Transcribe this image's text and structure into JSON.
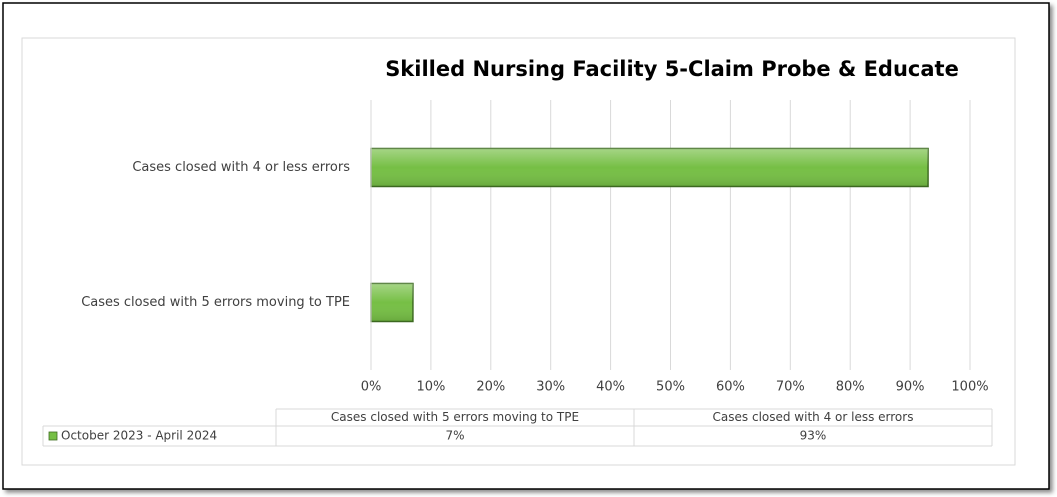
{
  "chart_data": {
    "type": "bar",
    "orientation": "horizontal",
    "title": "Skilled Nursing Facility 5-Claim Probe & Educate",
    "categories": [
      "Cases closed with 5 errors moving to TPE",
      "Cases closed with 4 or less errors"
    ],
    "series": [
      {
        "name": "October 2023 - April 2024",
        "color": "#76bf45",
        "values": [
          7,
          93
        ],
        "value_labels": [
          "7%",
          "93%"
        ]
      }
    ],
    "xlim": [
      0,
      100
    ],
    "xticks": [
      {
        "value": 0,
        "label": "0%"
      },
      {
        "value": 10,
        "label": "10%"
      },
      {
        "value": 20,
        "label": "20%"
      },
      {
        "value": 30,
        "label": "30%"
      },
      {
        "value": 40,
        "label": "40%"
      },
      {
        "value": 50,
        "label": "50%"
      },
      {
        "value": 60,
        "label": "60%"
      },
      {
        "value": 70,
        "label": "70%"
      },
      {
        "value": 80,
        "label": "80%"
      },
      {
        "value": 90,
        "label": "90%"
      },
      {
        "value": 100,
        "label": "100%"
      }
    ],
    "grid": true,
    "data_table": true
  }
}
